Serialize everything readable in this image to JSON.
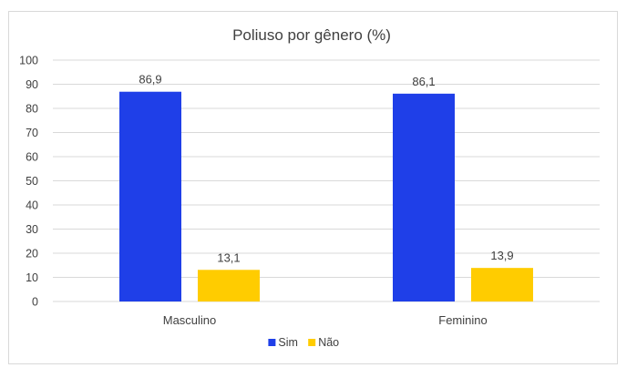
{
  "chart_data": {
    "type": "bar",
    "title": "Poliuso por gênero (%)",
    "categories": [
      "Masculino",
      "Feminino"
    ],
    "series": [
      {
        "name": "Sim",
        "values": [
          86.9,
          86.1
        ],
        "labels": [
          "86,9",
          "86,1"
        ],
        "color": "#1f3fe8"
      },
      {
        "name": "Não",
        "values": [
          13.1,
          13.9
        ],
        "labels": [
          "13,1",
          "13,9"
        ],
        "color": "#ffcc00"
      }
    ],
    "ylim": [
      0,
      100
    ],
    "yticks": [
      "0",
      "10",
      "20",
      "30",
      "40",
      "50",
      "60",
      "70",
      "80",
      "90",
      "100"
    ],
    "grid": true,
    "legend_position": "bottom"
  }
}
